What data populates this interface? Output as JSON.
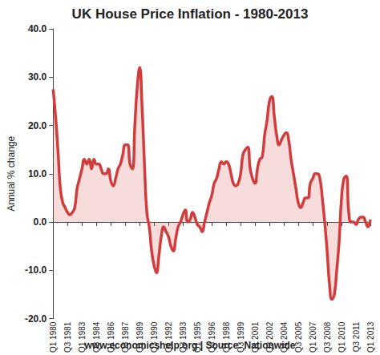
{
  "chart_data": {
    "type": "line",
    "title": "UK House Price Inflation - 1980-2013",
    "y_label": "Annual % change",
    "annotations": [
      "www.economicshelp.org | Source: Nationwide"
    ],
    "color": "#d23c3c",
    "grid": false,
    "categories": [
      "Q1 1980",
      null,
      null,
      null,
      null,
      null,
      "Q3 1981",
      null,
      null,
      null,
      null,
      null,
      "Q1 1983",
      null,
      null,
      null,
      null,
      null,
      "Q3 1984",
      null,
      null,
      null,
      null,
      null,
      "Q1 1986",
      null,
      null,
      null,
      null,
      null,
      "Q3 1987",
      null,
      null,
      null,
      null,
      null,
      "Q1 1989",
      null,
      null,
      null,
      null,
      null,
      "Q3 1990",
      null,
      null,
      null,
      null,
      null,
      "Q1 1992",
      null,
      null,
      null,
      null,
      null,
      "Q3 1993",
      null,
      null,
      null,
      null,
      null,
      "Q1 1995",
      null,
      null,
      null,
      null,
      null,
      "Q3 1996",
      null,
      null,
      null,
      null,
      null,
      "Q1 1998",
      null,
      null,
      null,
      null,
      null,
      "Q3 1999",
      null,
      null,
      null,
      null,
      null,
      "Q1 2001",
      null,
      null,
      null,
      null,
      null,
      "Q3 2002",
      null,
      null,
      null,
      null,
      null,
      "Q1 2004",
      null,
      null,
      null,
      null,
      null,
      "Q3 2005",
      null,
      null,
      null,
      null,
      null,
      "Q1 2007",
      null,
      null,
      null,
      null,
      null,
      "Q3 2008",
      null,
      null,
      null,
      null,
      null,
      "Q1 2010",
      null,
      null,
      null,
      null,
      null,
      "Q3 2011",
      null,
      null,
      null,
      null,
      null,
      "Q1 2013"
    ],
    "values": [
      27.5,
      22,
      15,
      7,
      4,
      3,
      2,
      1.5,
      2,
      3,
      7,
      9,
      11,
      13,
      12,
      13,
      11,
      13,
      12,
      12,
      11,
      10,
      10,
      11,
      8.5,
      7.5,
      9,
      11,
      12,
      14,
      16,
      16,
      12,
      11,
      20,
      28,
      32,
      24,
      12,
      2,
      -1,
      -6,
      -9,
      -10.5,
      -7,
      -3,
      -1,
      -2,
      -3,
      -5,
      -6,
      -3.5,
      -1,
      0,
      1.5,
      2.5,
      0,
      0.5,
      2,
      1,
      -0.5,
      -1,
      -2,
      0,
      2,
      4,
      5.5,
      8,
      9,
      11,
      12.5,
      12,
      12.5,
      12,
      10,
      8,
      7.5,
      8,
      10,
      14,
      15,
      15.5,
      11,
      9,
      8,
      11,
      13,
      13.5,
      18,
      21,
      25,
      26,
      22,
      18,
      16,
      17,
      18,
      18.5,
      17,
      13,
      10,
      7,
      4,
      3,
      4,
      5,
      5,
      8,
      9,
      10,
      10,
      9,
      5,
      0,
      -6,
      -13,
      -16,
      -15,
      -10,
      -4,
      5,
      9,
      9.5,
      2,
      0,
      0,
      -0.5,
      0.5,
      1,
      1,
      0,
      -1,
      0.5
    ],
    "ylim": [
      -20,
      40
    ],
    "yticks": [
      {
        "value": -20,
        "label": "-20.0"
      },
      {
        "value": -10,
        "label": "-10.0"
      },
      {
        "value": 0,
        "label": "0.0"
      },
      {
        "value": 10,
        "label": "10.0"
      },
      {
        "value": 20,
        "label": "20.0"
      },
      {
        "value": 30,
        "label": "30.0"
      },
      {
        "value": 40,
        "label": "40.0"
      }
    ]
  }
}
